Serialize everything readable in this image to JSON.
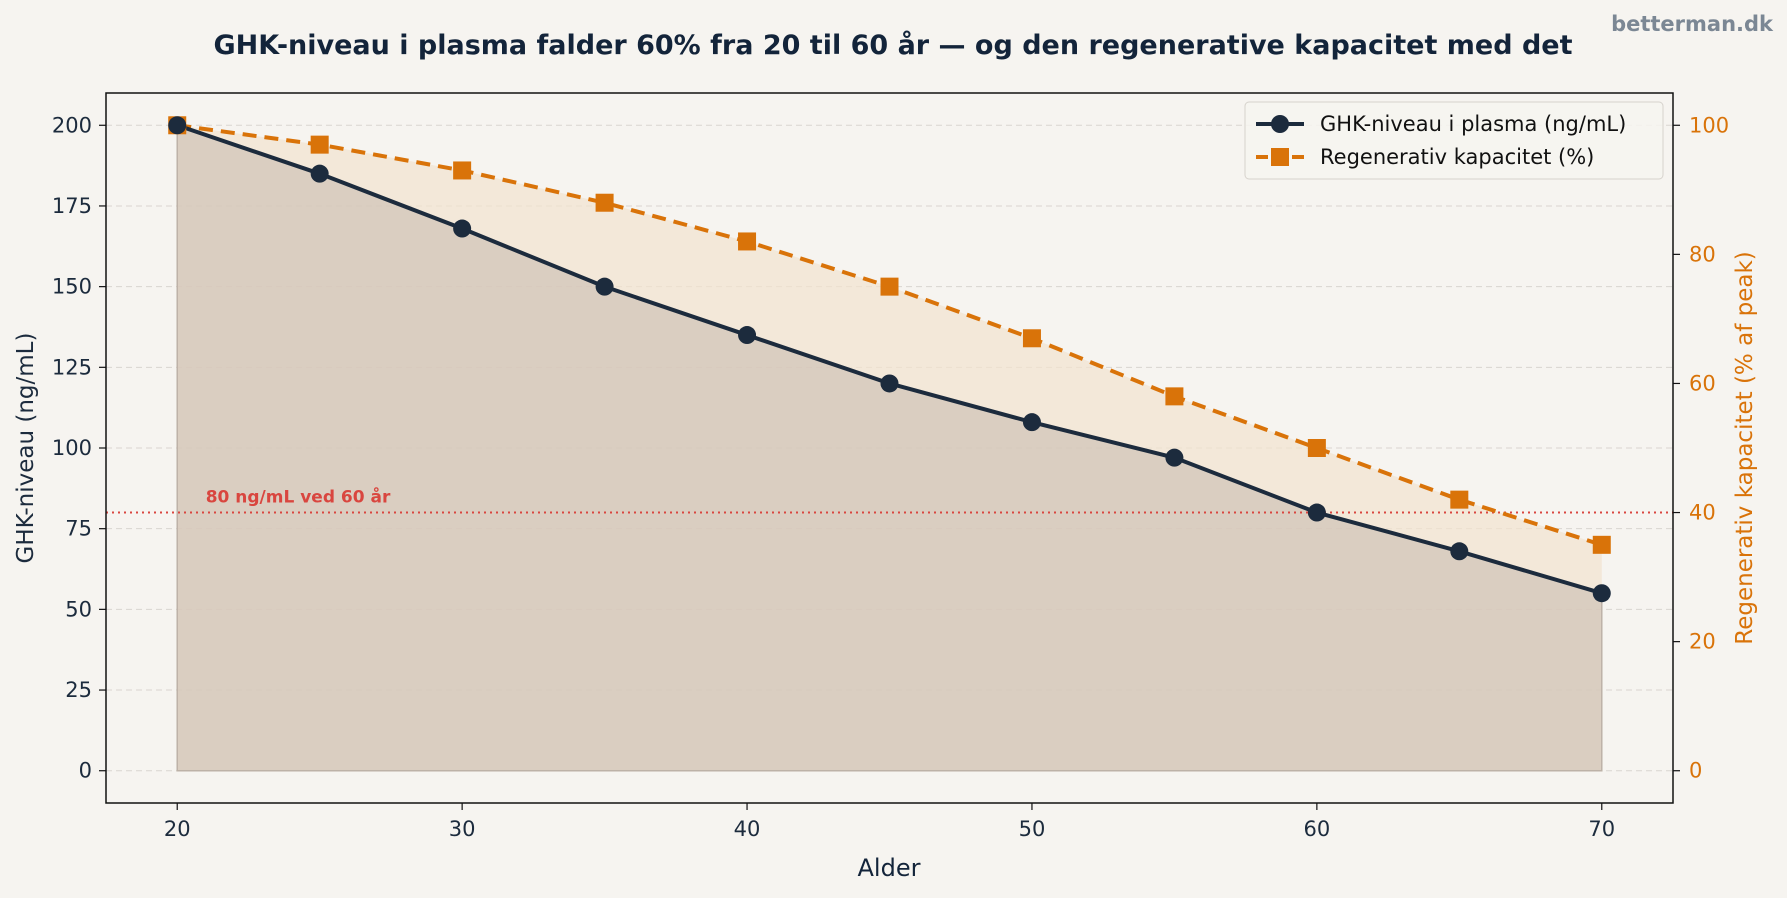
{
  "brand": "betterman.dk",
  "chart_data": {
    "type": "line",
    "title": "GHK-niveau i plasma falder 60% fra 20 til 60 år — og den regenerative kapacitet med det",
    "xlabel": "Alder",
    "ylabel_left": "GHK-niveau (ng/mL)",
    "ylabel_right": "Regenerativ kapacitet (% af peak)",
    "x": [
      20,
      25,
      30,
      35,
      40,
      45,
      50,
      55,
      60,
      65,
      70
    ],
    "xlim": [
      17.5,
      72.5
    ],
    "xticks": [
      20,
      30,
      40,
      50,
      60,
      70
    ],
    "ylim_left": [
      -10,
      210
    ],
    "yticks_left": [
      0,
      25,
      50,
      75,
      100,
      125,
      150,
      175,
      200
    ],
    "ylim_right": [
      -5,
      105
    ],
    "yticks_right": [
      0,
      20,
      40,
      60,
      80,
      100
    ],
    "grid": "horizontal dashed",
    "legend_position": "top-right",
    "series": [
      {
        "name": "GHK-niveau i plasma (ng/mL)",
        "axis": "left",
        "marker": "circle",
        "style": "solid",
        "color": "#1c2b3d",
        "values": [
          200,
          185,
          168,
          150,
          135,
          120,
          108,
          97,
          80,
          68,
          55
        ]
      },
      {
        "name": "Regenerativ kapacitet (%)",
        "axis": "right",
        "marker": "square",
        "style": "dashed",
        "color": "#d97309",
        "values": [
          100,
          97,
          93,
          88,
          82,
          75,
          67,
          58,
          50,
          42,
          35
        ]
      }
    ],
    "reference_line": {
      "axis": "left",
      "value": 80,
      "label": "80 ng/mL ved 60 år",
      "color": "#d9463f"
    },
    "colors": {
      "left_axis_text": "#1c2b3d",
      "right_axis_text": "#d97309",
      "fill_left": "#c9bcb0",
      "fill_right": "#f2e3cf"
    }
  }
}
